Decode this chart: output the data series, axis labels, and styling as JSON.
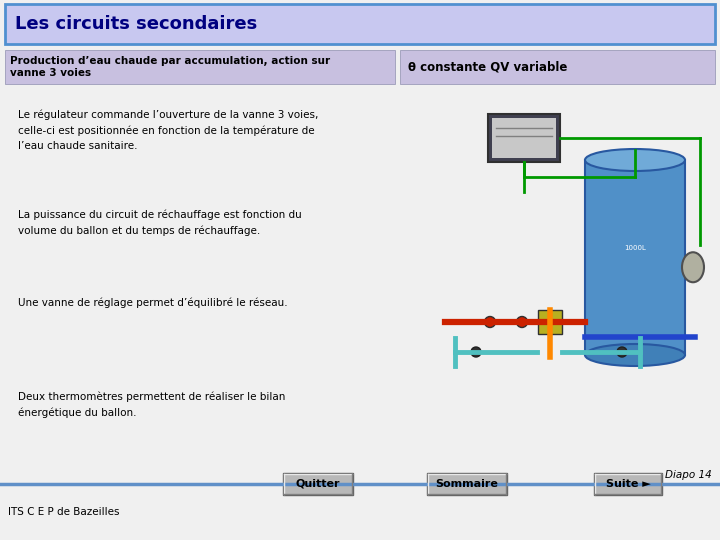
{
  "title": "Les circuits secondaires",
  "subtitle_left": "Production d’eau chaude par accumulation, action sur\nvanne 3 voies",
  "subtitle_right": "θ constante QV variable",
  "bg_color": "#f0f0f0",
  "header_bg": "#c8c8f0",
  "header_border": "#5090d0",
  "subheader_bg": "#c8c0e0",
  "title_color": "#000080",
  "subtitle_color": "#000000",
  "body_text_1": "Le régulateur commande l’ouverture de la vanne 3 voies,\ncelle-ci est positionnée en fonction de la température de\nl’eau chaude sanitaire.",
  "body_text_2": "La puissance du circuit de réchauffage est fonction du\nvolume du ballon et du temps de réchauffage.",
  "body_text_3": "Une vanne de réglage permet d’équilibré le réseau.",
  "body_text_4": "Deux thermomètres permettent de réaliser le bilan\nénergétique du ballon.",
  "footer_left": "ITS C E P de Bazeilles",
  "footer_diapo": "Diapo 14",
  "btn_quitter": "Quitter",
  "btn_sommaire": "Sommaire",
  "btn_suite": "Suite ►",
  "footer_line_color": "#6090c8",
  "body_text_color": "#000000",
  "body_text_fontsize": 7.5,
  "subtitle_fontsize": 7.5,
  "title_fontsize": 13
}
